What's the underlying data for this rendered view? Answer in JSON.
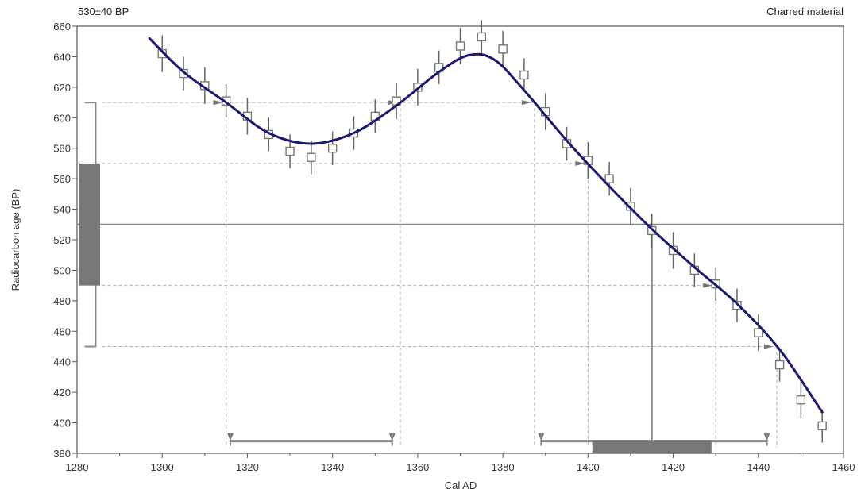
{
  "chart_data": {
    "type": "line",
    "title": "",
    "header_left": "530±40 BP",
    "header_right": "Charred material",
    "xlabel": "Cal AD",
    "ylabel": "Radiocarbon age (BP)",
    "xlim": [
      1280,
      1460
    ],
    "ylim": [
      380,
      660
    ],
    "x_ticks": [
      1280,
      1300,
      1320,
      1340,
      1360,
      1380,
      1400,
      1420,
      1440,
      1460
    ],
    "y_ticks": [
      380,
      400,
      420,
      440,
      460,
      480,
      500,
      520,
      540,
      560,
      580,
      600,
      620,
      640,
      660
    ],
    "grid": false,
    "measurement": {
      "age_bp": 530,
      "sigma1": [
        490,
        570
      ],
      "sigma2": [
        450,
        610
      ]
    },
    "series": [
      {
        "type": "line",
        "color": "#1a1a6e",
        "x": [
          1297,
          1305,
          1315,
          1325,
          1335,
          1345,
          1355,
          1365,
          1372,
          1378,
          1385,
          1395,
          1405,
          1415,
          1425,
          1435,
          1445,
          1455
        ],
        "y": [
          652,
          630,
          610,
          590,
          583,
          590,
          608,
          630,
          641,
          638,
          618,
          585,
          555,
          527,
          502,
          478,
          448,
          407
        ]
      },
      {
        "type": "scatter",
        "marker": "square",
        "x": [
          1300,
          1305,
          1310,
          1315,
          1320,
          1325,
          1330,
          1335,
          1340,
          1345,
          1350,
          1355,
          1360,
          1365,
          1370,
          1375,
          1380,
          1385,
          1390,
          1395,
          1400,
          1405,
          1410,
          1415,
          1420,
          1425,
          1430,
          1435,
          1440,
          1445,
          1450,
          1455
        ],
        "y": [
          642,
          629,
          621,
          611,
          601,
          589,
          578,
          574,
          580,
          590,
          601,
          611,
          620,
          633,
          647,
          653,
          645,
          628,
          604,
          583,
          572,
          560,
          542,
          526,
          513,
          500,
          491,
          477,
          459,
          438,
          415,
          398
        ],
        "err": [
          12,
          11,
          12,
          11,
          12,
          11,
          11,
          11,
          11,
          11,
          11,
          12,
          12,
          11,
          12,
          11,
          12,
          11,
          12,
          11,
          12,
          11,
          12,
          11,
          12,
          11,
          11,
          11,
          12,
          11,
          12,
          11
        ]
      }
    ],
    "calibrated_ranges_2sigma": [
      [
        1316,
        1354
      ],
      [
        1389,
        1442
      ]
    ],
    "calibrated_ranges_1sigma": [
      [
        1401,
        1429
      ]
    ],
    "intercept_year": 1415,
    "colors": {
      "curve": "#1a1a6e",
      "gray": "#888888",
      "dark_gray": "#777777",
      "dash": "#b0b0b0"
    }
  }
}
